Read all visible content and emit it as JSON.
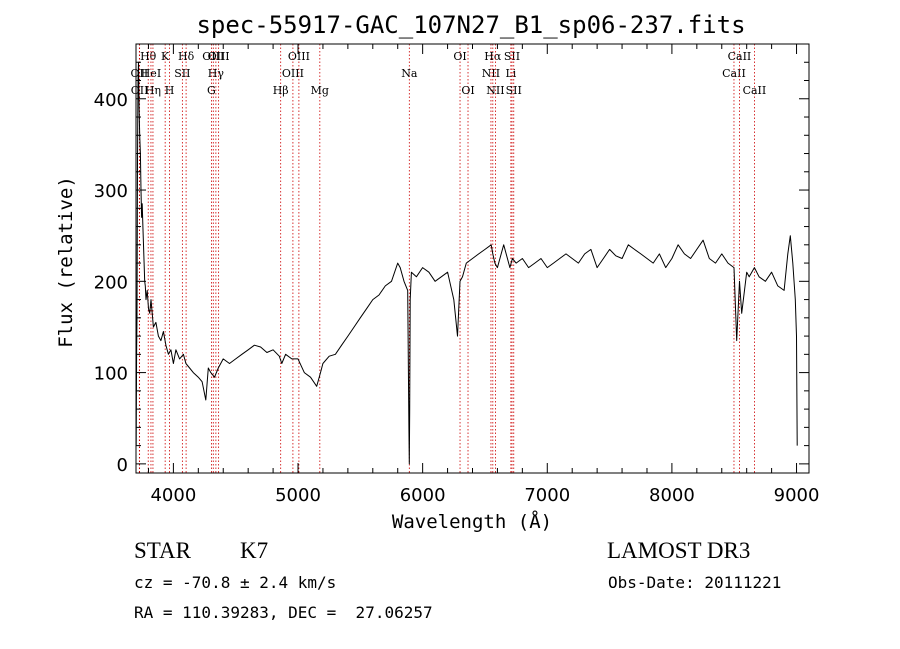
{
  "chart_data": {
    "type": "line",
    "title": "spec-55917-GAC_107N27_B1_sp06-237.fits",
    "xlabel": "Wavelength (Å)",
    "ylabel": "Flux (relative)",
    "xlim": [
      3700,
      9100
    ],
    "ylim": [
      -10,
      460
    ],
    "xticks": [
      4000,
      5000,
      6000,
      7000,
      8000,
      9000
    ],
    "yticks": [
      0,
      100,
      200,
      300,
      400
    ],
    "grid": false,
    "series": [
      {
        "x": [
          3700,
          3702,
          3705,
          3708,
          3712,
          3716,
          3720,
          3725,
          3730,
          3735,
          3740,
          3745,
          3750,
          3755,
          3760,
          3765,
          3770,
          3775,
          3780,
          3790,
          3800,
          3810,
          3820,
          3840,
          3860,
          3880,
          3900,
          3920,
          3940,
          3960,
          3980,
          4000,
          4020,
          4050,
          4080,
          4100,
          4130,
          4160,
          4200,
          4230,
          4260,
          4280,
          4300,
          4330,
          4360,
          4400,
          4450,
          4500,
          4550,
          4600,
          4650,
          4700,
          4750,
          4800,
          4850,
          4870,
          4900,
          4950,
          5000,
          5050,
          5100,
          5150,
          5180,
          5200,
          5250,
          5300,
          5350,
          5400,
          5450,
          5500,
          5550,
          5600,
          5650,
          5700,
          5750,
          5800,
          5820,
          5850,
          5880,
          5890,
          5893,
          5896,
          5900,
          5910,
          5950,
          6000,
          6050,
          6100,
          6150,
          6200,
          6250,
          6280,
          6300,
          6320,
          6350,
          6400,
          6450,
          6500,
          6550,
          6563,
          6580,
          6600,
          6650,
          6700,
          6720,
          6750,
          6800,
          6850,
          6900,
          6950,
          7000,
          7050,
          7100,
          7150,
          7200,
          7250,
          7300,
          7350,
          7400,
          7450,
          7500,
          7550,
          7600,
          7650,
          7700,
          7750,
          7800,
          7850,
          7900,
          7950,
          8000,
          8050,
          8100,
          8150,
          8200,
          8250,
          8300,
          8350,
          8400,
          8450,
          8498,
          8520,
          8542,
          8560,
          8600,
          8620,
          8662,
          8700,
          8750,
          8800,
          8850,
          8900,
          8930,
          8950,
          8970,
          8990,
          9000,
          9005
        ],
        "y": [
          60,
          20,
          120,
          160,
          330,
          420,
          440,
          390,
          360,
          340,
          300,
          270,
          285,
          260,
          240,
          220,
          200,
          195,
          180,
          190,
          170,
          165,
          180,
          150,
          155,
          140,
          135,
          145,
          130,
          120,
          125,
          110,
          125,
          115,
          120,
          110,
          105,
          100,
          95,
          90,
          70,
          105,
          100,
          95,
          105,
          115,
          110,
          115,
          120,
          125,
          130,
          128,
          122,
          125,
          118,
          110,
          120,
          115,
          115,
          100,
          95,
          85,
          100,
          110,
          118,
          120,
          130,
          140,
          150,
          160,
          170,
          180,
          185,
          195,
          200,
          220,
          215,
          200,
          190,
          40,
          0,
          60,
          180,
          210,
          205,
          215,
          210,
          200,
          205,
          210,
          180,
          140,
          200,
          205,
          220,
          225,
          230,
          235,
          240,
          230,
          220,
          215,
          240,
          215,
          225,
          220,
          225,
          215,
          220,
          225,
          215,
          220,
          225,
          230,
          225,
          220,
          230,
          235,
          215,
          225,
          235,
          228,
          225,
          240,
          235,
          230,
          225,
          220,
          230,
          215,
          225,
          240,
          230,
          225,
          235,
          245,
          225,
          220,
          230,
          220,
          215,
          135,
          200,
          165,
          210,
          205,
          215,
          205,
          200,
          210,
          195,
          190,
          230,
          250,
          220,
          180,
          140,
          20
        ]
      }
    ],
    "lines": [
      {
        "label": "OII",
        "wl": 3727,
        "row": 2
      },
      {
        "label": "OII",
        "wl": 3729,
        "row": 3
      },
      {
        "label": "Hθ",
        "wl": 3798,
        "row": 1
      },
      {
        "label": "HeI",
        "wl": 3820,
        "row": 2
      },
      {
        "label": "Hη",
        "wl": 3836,
        "row": 3
      },
      {
        "label": "K",
        "wl": 3934,
        "row": 1
      },
      {
        "label": "H",
        "wl": 3969,
        "row": 3
      },
      {
        "label": "SII",
        "wl": 4072,
        "row": 2
      },
      {
        "label": "Hδ",
        "wl": 4102,
        "row": 1
      },
      {
        "label": "OIII",
        "wl": 4320,
        "row": 1
      },
      {
        "label": "Hγ",
        "wl": 4341,
        "row": 2
      },
      {
        "label": "G",
        "wl": 4305,
        "row": 3
      },
      {
        "label": "OIII",
        "wl": 4363,
        "row": 1
      },
      {
        "label": "Hβ",
        "wl": 4861,
        "row": 3
      },
      {
        "label": "OIII",
        "wl": 4959,
        "row": 2
      },
      {
        "label": "OIII",
        "wl": 5007,
        "row": 1
      },
      {
        "label": "Mg",
        "wl": 5175,
        "row": 3
      },
      {
        "label": "Na",
        "wl": 5893,
        "row": 2
      },
      {
        "label": "OI",
        "wl": 6300,
        "row": 1
      },
      {
        "label": "OI",
        "wl": 6364,
        "row": 3
      },
      {
        "label": "NII",
        "wl": 6548,
        "row": 2
      },
      {
        "label": "Hα",
        "wl": 6563,
        "row": 1
      },
      {
        "label": "NII",
        "wl": 6584,
        "row": 3
      },
      {
        "label": "Li",
        "wl": 6708,
        "row": 2
      },
      {
        "label": "SII",
        "wl": 6717,
        "row": 1
      },
      {
        "label": "SII",
        "wl": 6731,
        "row": 3
      },
      {
        "label": "CaII",
        "wl": 8498,
        "row": 2
      },
      {
        "label": "CaII",
        "wl": 8542,
        "row": 1
      },
      {
        "label": "CaII",
        "wl": 8662,
        "row": 3
      }
    ]
  },
  "info": {
    "class": "STAR",
    "subclass": "K7",
    "survey": "LAMOST DR3",
    "redshift": "cz = -70.8 ± 2.4 km/s",
    "obs_date": "Obs-Date: 20111221",
    "coords": "RA = 110.39283, DEC =  27.06257"
  },
  "colors": {
    "spectrum": "#000000",
    "line_markers": "#cc0000",
    "axes": "#000000"
  }
}
